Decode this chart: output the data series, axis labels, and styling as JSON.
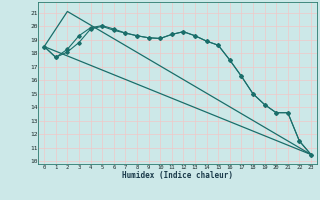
{
  "xlabel": "Humidex (Indice chaleur)",
  "bg_color": "#cce8e8",
  "grid_color": "#f0c8c8",
  "line_color": "#1a6e6a",
  "xlim": [
    -0.5,
    23.5
  ],
  "ylim": [
    9.8,
    21.8
  ],
  "yticks": [
    10,
    11,
    12,
    13,
    14,
    15,
    16,
    17,
    18,
    19,
    20,
    21
  ],
  "xticks": [
    0,
    1,
    2,
    3,
    4,
    5,
    6,
    7,
    8,
    9,
    10,
    11,
    12,
    13,
    14,
    15,
    16,
    17,
    18,
    19,
    20,
    21,
    22,
    23
  ],
  "line1_x": [
    0,
    1,
    2,
    3,
    4,
    5,
    6,
    7,
    8,
    9,
    10,
    11,
    12,
    13,
    14,
    15,
    16,
    17,
    18,
    19,
    20,
    21,
    22,
    23
  ],
  "line1_y": [
    18.5,
    17.7,
    18.1,
    18.8,
    19.8,
    20.0,
    19.7,
    19.5,
    19.3,
    19.15,
    19.1,
    19.4,
    19.6,
    19.3,
    18.9,
    18.6,
    17.5,
    16.3,
    15.0,
    14.2,
    13.6,
    13.6,
    11.5,
    10.5
  ],
  "line2_x": [
    0,
    1,
    2,
    3,
    4,
    5,
    6,
    7,
    8,
    9,
    10,
    11,
    12,
    13,
    14,
    15,
    16,
    17,
    18,
    19,
    20,
    21,
    22,
    23
  ],
  "line2_y": [
    18.5,
    17.7,
    18.3,
    19.3,
    19.9,
    20.05,
    19.8,
    19.5,
    19.3,
    19.15,
    19.1,
    19.4,
    19.6,
    19.3,
    18.9,
    18.6,
    17.5,
    16.3,
    15.0,
    14.2,
    13.6,
    13.6,
    11.5,
    10.5
  ],
  "line3_x": [
    0,
    23
  ],
  "line3_y": [
    18.5,
    10.5
  ],
  "line4_x": [
    0,
    2,
    23
  ],
  "line4_y": [
    18.5,
    21.1,
    10.5
  ]
}
